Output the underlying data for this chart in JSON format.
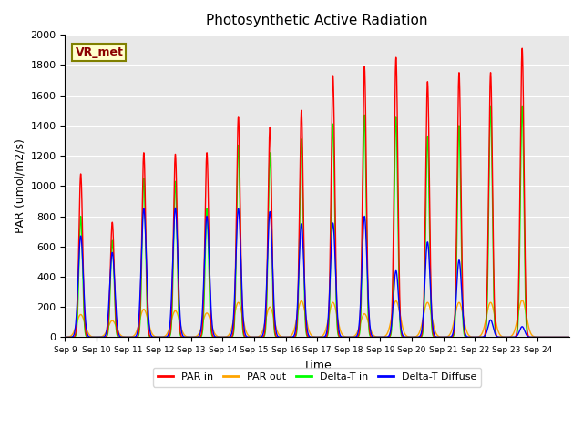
{
  "title": "Photosynthetic Active Radiation",
  "ylabel": "PAR (umol/m2/s)",
  "xlabel": "Time",
  "annotation": "VR_met",
  "ylim": [
    0,
    2000
  ],
  "background_color": "#e8e8e8",
  "x_tick_labels": [
    "Sep 9",
    "Sep 10",
    "Sep 11",
    "Sep 12",
    "Sep 13",
    "Sep 14",
    "Sep 15",
    "Sep 16",
    "Sep 17",
    "Sep 18",
    "Sep 19",
    "Sep 20",
    "Sep 21",
    "Sep 22",
    "Sep 23",
    "Sep 24"
  ],
  "days": 16,
  "par_in_peaks": [
    1080,
    760,
    1220,
    1210,
    1220,
    1460,
    1390,
    1500,
    1730,
    1790,
    1850,
    1690,
    1750,
    1750,
    1910,
    0
  ],
  "par_out_peaks": [
    150,
    110,
    185,
    175,
    160,
    230,
    200,
    240,
    230,
    155,
    240,
    230,
    230,
    230,
    245,
    0
  ],
  "delta_t_peaks": [
    800,
    640,
    1050,
    1030,
    850,
    1270,
    1220,
    1310,
    1410,
    1470,
    1460,
    1330,
    1400,
    1530,
    1530,
    0
  ],
  "delta_d_peaks": [
    670,
    560,
    850,
    855,
    800,
    850,
    830,
    750,
    755,
    800,
    440,
    630,
    510,
    115,
    70,
    0
  ]
}
